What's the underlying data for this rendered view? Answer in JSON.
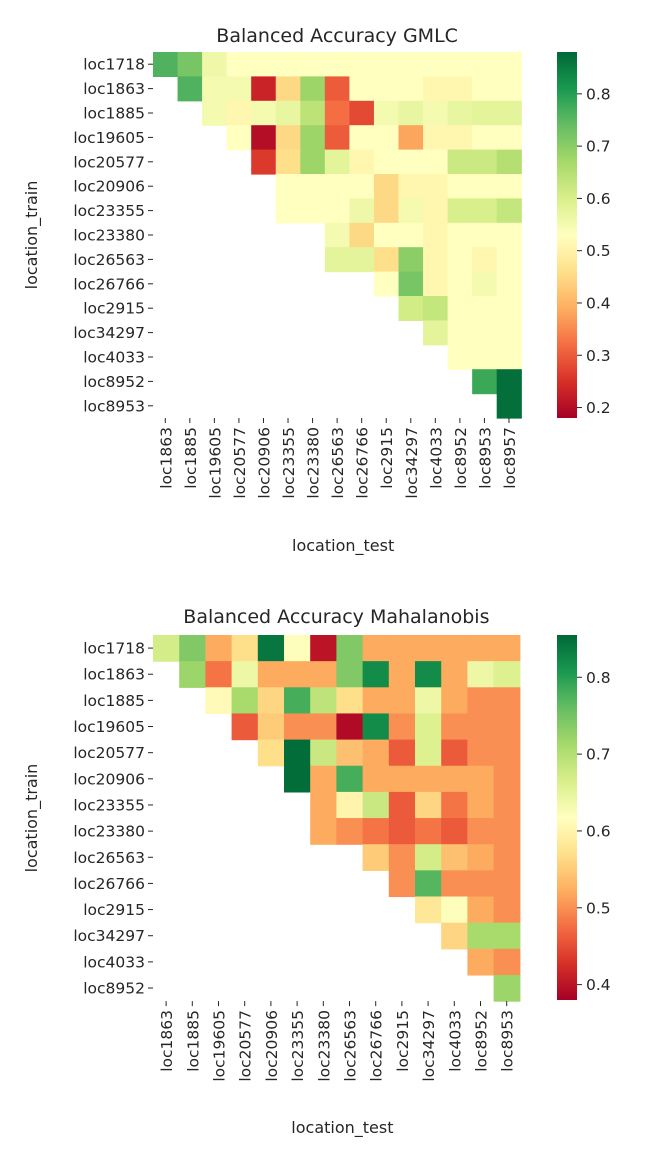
{
  "chart_data": [
    {
      "type": "heatmap",
      "title": "Balanced Accuracy GMLC",
      "xlabel": "location_test",
      "ylabel": "location_train",
      "x": [
        "loc1863",
        "loc1885",
        "loc19605",
        "loc20577",
        "loc20906",
        "loc23355",
        "loc23380",
        "loc26563",
        "loc26766",
        "loc2915",
        "loc34297",
        "loc4033",
        "loc8952",
        "loc8953",
        "loc8957"
      ],
      "y": [
        "loc1718",
        "loc1863",
        "loc1885",
        "loc19605",
        "loc20577",
        "loc20906",
        "loc23355",
        "loc23380",
        "loc26563",
        "loc26766",
        "loc2915",
        "loc34297",
        "loc4033",
        "loc8952",
        "loc8953"
      ],
      "colormap": "RdYlGn",
      "vmin": 0.18,
      "vmax": 0.88,
      "colorbar_ticks": [
        0.2,
        0.3,
        0.4,
        0.5,
        0.6,
        0.7,
        0.8
      ],
      "values": [
        [
          0.76,
          0.72,
          0.56,
          0.53,
          0.53,
          0.53,
          0.53,
          0.53,
          0.53,
          0.53,
          0.53,
          0.53,
          0.53,
          0.53,
          0.53
        ],
        [
          null,
          0.76,
          0.55,
          0.55,
          0.23,
          0.45,
          0.68,
          0.3,
          0.53,
          0.53,
          0.53,
          0.51,
          0.51,
          0.53,
          0.53
        ],
        [
          null,
          null,
          0.55,
          0.51,
          0.55,
          0.57,
          0.64,
          0.32,
          0.28,
          0.55,
          0.57,
          0.55,
          0.57,
          0.58,
          0.58
        ],
        [
          null,
          null,
          null,
          0.53,
          0.2,
          0.45,
          0.68,
          0.3,
          0.53,
          0.53,
          0.38,
          0.51,
          0.51,
          0.53,
          0.53
        ],
        [
          null,
          null,
          null,
          null,
          0.26,
          0.46,
          0.68,
          0.58,
          0.51,
          0.53,
          0.53,
          0.53,
          0.62,
          0.62,
          0.65
        ],
        [
          null,
          null,
          null,
          null,
          null,
          0.53,
          0.53,
          0.53,
          0.53,
          0.45,
          0.51,
          0.51,
          0.53,
          0.53,
          0.53
        ],
        [
          null,
          null,
          null,
          null,
          null,
          0.53,
          0.53,
          0.53,
          0.56,
          0.45,
          0.55,
          0.51,
          0.6,
          0.6,
          0.63
        ],
        [
          null,
          null,
          null,
          null,
          null,
          null,
          null,
          0.55,
          0.45,
          0.53,
          0.53,
          0.51,
          0.53,
          0.53,
          0.53
        ],
        [
          null,
          null,
          null,
          null,
          null,
          null,
          null,
          0.58,
          0.58,
          0.46,
          0.7,
          0.51,
          0.53,
          0.51,
          0.53
        ],
        [
          null,
          null,
          null,
          null,
          null,
          null,
          null,
          null,
          null,
          0.53,
          0.72,
          0.51,
          0.53,
          0.55,
          0.53
        ],
        [
          null,
          null,
          null,
          null,
          null,
          null,
          null,
          null,
          null,
          null,
          0.61,
          0.63,
          0.53,
          0.53,
          0.53
        ],
        [
          null,
          null,
          null,
          null,
          null,
          null,
          null,
          null,
          null,
          null,
          null,
          0.58,
          0.53,
          0.53,
          0.53
        ],
        [
          null,
          null,
          null,
          null,
          null,
          null,
          null,
          null,
          null,
          null,
          null,
          null,
          0.53,
          0.53,
          0.53
        ],
        [
          null,
          null,
          null,
          null,
          null,
          null,
          null,
          null,
          null,
          null,
          null,
          null,
          null,
          0.78,
          0.87
        ],
        [
          null,
          null,
          null,
          null,
          null,
          null,
          null,
          null,
          null,
          null,
          null,
          null,
          null,
          null,
          0.87
        ]
      ]
    },
    {
      "type": "heatmap",
      "title": "Balanced Accuracy Mahalanobis",
      "xlabel": "location_test",
      "ylabel": "location_train",
      "x": [
        "loc1863",
        "loc1885",
        "loc19605",
        "loc20577",
        "loc20906",
        "loc23355",
        "loc23380",
        "loc26563",
        "loc26766",
        "loc2915",
        "loc34297",
        "loc4033",
        "loc8952",
        "loc8953"
      ],
      "y": [
        "loc1718",
        "loc1863",
        "loc1885",
        "loc19605",
        "loc20577",
        "loc20906",
        "loc23355",
        "loc23380",
        "loc26563",
        "loc26766",
        "loc2915",
        "loc34297",
        "loc4033",
        "loc8952"
      ],
      "colormap": "RdYlGn",
      "vmin": 0.38,
      "vmax": 0.855,
      "colorbar_ticks": [
        0.4,
        0.5,
        0.6,
        0.7,
        0.8
      ],
      "values": [
        [
          0.67,
          0.74,
          0.52,
          0.57,
          0.84,
          0.62,
          0.4,
          0.74,
          0.52,
          0.52,
          0.52,
          0.52,
          0.52,
          0.52
        ],
        [
          null,
          0.72,
          0.48,
          0.64,
          0.52,
          0.52,
          0.52,
          0.74,
          0.82,
          0.52,
          0.82,
          0.52,
          0.64,
          0.66
        ],
        [
          null,
          null,
          0.61,
          0.71,
          0.56,
          0.78,
          0.69,
          0.57,
          0.52,
          0.52,
          0.64,
          0.52,
          0.5,
          0.5
        ],
        [
          null,
          null,
          null,
          0.46,
          0.55,
          0.5,
          0.5,
          0.39,
          0.82,
          0.5,
          0.66,
          0.5,
          0.5,
          0.5
        ],
        [
          null,
          null,
          null,
          null,
          0.57,
          0.85,
          0.68,
          0.54,
          0.52,
          0.46,
          0.66,
          0.46,
          0.5,
          0.5
        ],
        [
          null,
          null,
          null,
          null,
          null,
          0.85,
          0.52,
          0.78,
          0.52,
          0.52,
          0.52,
          0.52,
          0.52,
          0.5
        ],
        [
          null,
          null,
          null,
          null,
          null,
          null,
          0.52,
          0.6,
          0.68,
          0.46,
          0.56,
          0.48,
          0.52,
          0.5
        ],
        [
          null,
          null,
          null,
          null,
          null,
          null,
          0.52,
          0.5,
          0.48,
          0.46,
          0.48,
          0.46,
          0.5,
          0.5
        ],
        [
          null,
          null,
          null,
          null,
          null,
          null,
          null,
          null,
          0.55,
          0.5,
          0.67,
          0.54,
          0.52,
          0.5
        ],
        [
          null,
          null,
          null,
          null,
          null,
          null,
          null,
          null,
          null,
          0.5,
          0.77,
          0.5,
          0.5,
          0.5
        ],
        [
          null,
          null,
          null,
          null,
          null,
          null,
          null,
          null,
          null,
          null,
          0.58,
          0.62,
          0.52,
          0.5
        ],
        [
          null,
          null,
          null,
          null,
          null,
          null,
          null,
          null,
          null,
          null,
          null,
          0.56,
          0.71,
          0.71
        ],
        [
          null,
          null,
          null,
          null,
          null,
          null,
          null,
          null,
          null,
          null,
          null,
          null,
          0.52,
          0.5
        ],
        [
          null,
          null,
          null,
          null,
          null,
          null,
          null,
          null,
          null,
          null,
          null,
          null,
          null,
          0.72
        ]
      ]
    }
  ]
}
